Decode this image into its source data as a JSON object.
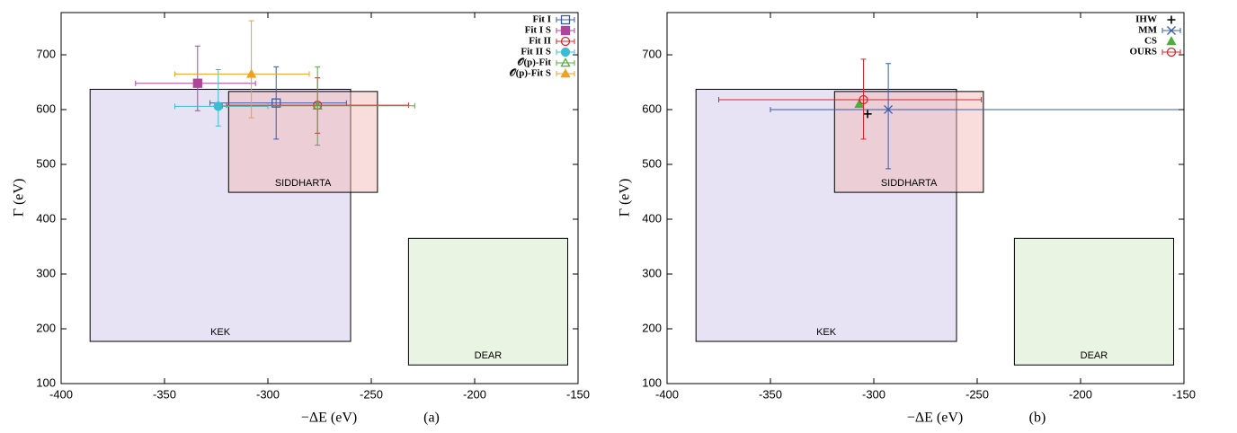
{
  "chart_data": [
    {
      "type": "scatter",
      "caption": "(a)",
      "xlabel": "−ΔE (eV)",
      "ylabel": "Γ (eV)",
      "xlim": [
        -400,
        -150
      ],
      "ylim": [
        100,
        777
      ],
      "xticks": [
        -400,
        -350,
        -300,
        -250,
        -200,
        -150
      ],
      "yticks": [
        100,
        200,
        300,
        400,
        500,
        600,
        700
      ],
      "regions": [
        {
          "label": "KEK",
          "xlim": [
            -386,
            -260
          ],
          "ylim": [
            177,
            637
          ],
          "color": "#c9c2e6"
        },
        {
          "label": "SIDDHARTA",
          "xlim": [
            -319,
            -247
          ],
          "ylim": [
            449,
            633
          ],
          "color": "#f2b3b3"
        },
        {
          "label": "DEAR",
          "xlim": [
            -232,
            -155
          ],
          "ylim": [
            134,
            365
          ],
          "color": "#cfe6bf"
        }
      ],
      "series": [
        {
          "name": "Fit I",
          "color": "#3a5ca8",
          "marker": "square",
          "filled": false,
          "x": [
            -296
          ],
          "xlow": [
            -328
          ],
          "xhigh": [
            -262
          ],
          "y": [
            612
          ],
          "ylow": [
            546
          ],
          "yhigh": [
            678
          ]
        },
        {
          "name": "Fit I S",
          "color": "#b0449a",
          "marker": "square",
          "filled": true,
          "x": [
            -334
          ],
          "xlow": [
            -364
          ],
          "xhigh": [
            -306
          ],
          "y": [
            648
          ],
          "ylow": [
            598
          ],
          "yhigh": [
            716
          ]
        },
        {
          "name": "Fit II",
          "color": "#d7262b",
          "marker": "circle",
          "filled": false,
          "x": [
            -276
          ],
          "xlow": [
            -320
          ],
          "xhigh": [
            -232
          ],
          "y": [
            608
          ],
          "ylow": [
            557
          ],
          "yhigh": [
            658
          ]
        },
        {
          "name": "Fit II S",
          "color": "#3bbcd4",
          "marker": "circle",
          "filled": true,
          "x": [
            -324
          ],
          "xlow": [
            -345
          ],
          "xhigh": [
            -300
          ],
          "y": [
            606
          ],
          "ylow": [
            570
          ],
          "yhigh": [
            673
          ]
        },
        {
          "name": "𝒪(p)-Fit",
          "color": "#4caf3c",
          "marker": "triangle",
          "filled": false,
          "x": [
            -276
          ],
          "xlow": [
            -322
          ],
          "xhigh": [
            -229
          ],
          "y": [
            607
          ],
          "ylow": [
            535
          ],
          "yhigh": [
            678
          ]
        },
        {
          "name": "𝒪(p)-Fit S",
          "color": "#f0a020",
          "marker": "triangle",
          "filled": true,
          "x": [
            -308
          ],
          "xlow": [
            -345
          ],
          "xhigh": [
            -280
          ],
          "y": [
            665
          ],
          "ylow": [
            585
          ],
          "yhigh": [
            762
          ]
        }
      ]
    },
    {
      "type": "scatter",
      "caption": "(b)",
      "xlabel": "−ΔE (eV)",
      "ylabel": "Γ (eV)",
      "xlim": [
        -400,
        -150
      ],
      "ylim": [
        100,
        777
      ],
      "xticks": [
        -400,
        -350,
        -300,
        -250,
        -200,
        -150
      ],
      "yticks": [
        100,
        200,
        300,
        400,
        500,
        600,
        700
      ],
      "regions": [
        {
          "label": "KEK",
          "xlim": [
            -386,
            -260
          ],
          "ylim": [
            177,
            637
          ],
          "color": "#c9c2e6"
        },
        {
          "label": "SIDDHARTA",
          "xlim": [
            -319,
            -247
          ],
          "ylim": [
            449,
            633
          ],
          "color": "#f2b3b3"
        },
        {
          "label": "DEAR",
          "xlim": [
            -232,
            -155
          ],
          "ylim": [
            134,
            365
          ],
          "color": "#cfe6bf"
        }
      ],
      "series": [
        {
          "name": "IHW",
          "color": "#000000",
          "marker": "plus",
          "filled": false,
          "x": [
            -303
          ],
          "y": [
            592
          ]
        },
        {
          "name": "MM",
          "color": "#3a5ca8",
          "marker": "cross",
          "filled": false,
          "x": [
            -293
          ],
          "xlow": [
            -350
          ],
          "xhigh": [
            -150
          ],
          "y": [
            600
          ],
          "ylow": [
            492
          ],
          "yhigh": [
            684
          ]
        },
        {
          "name": "CS",
          "color": "#4caf3c",
          "marker": "triangle",
          "filled": true,
          "x": [
            -307
          ],
          "y": [
            610
          ]
        },
        {
          "name": "OURS",
          "color": "#d7262b",
          "marker": "circle",
          "filled": false,
          "x": [
            -305
          ],
          "xlow": [
            -375
          ],
          "xhigh": [
            -248
          ],
          "y": [
            618
          ],
          "ylow": [
            546
          ],
          "yhigh": [
            692
          ]
        }
      ]
    }
  ]
}
